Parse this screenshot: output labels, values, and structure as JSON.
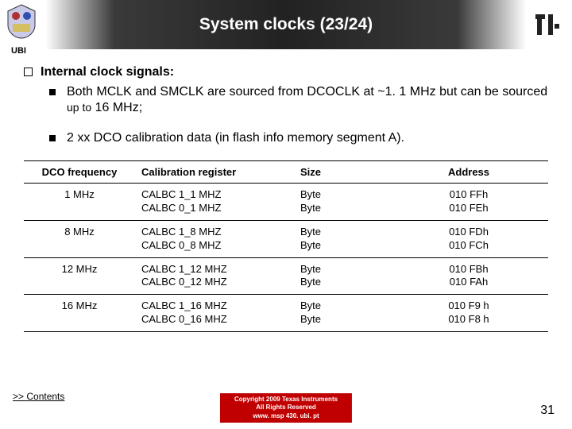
{
  "header": {
    "title": "System clocks (23/24)",
    "ubi_label": "UBI"
  },
  "content": {
    "main_heading": "Internal clock signals:",
    "sub1_a": "Both MCLK and SMCLK are sourced from DCOCLK at ~1. 1 MHz but can be sourced ",
    "sub1_b": "up to",
    "sub1_c": " 16 MHz;",
    "sub2": "2 xx DCO calibration data (in flash info memory segment A)."
  },
  "table": {
    "columns": [
      "DCO frequency",
      "Calibration register",
      "Size",
      "Address"
    ],
    "rows": [
      {
        "freq": "1 MHz",
        "reg1": "CALBC 1_1 MHZ",
        "reg2": "CALBC 0_1 MHZ",
        "size1": "Byte",
        "size2": "Byte",
        "addr1": "010 FFh",
        "addr2": "010 FEh"
      },
      {
        "freq": "8 MHz",
        "reg1": "CALBC 1_8 MHZ",
        "reg2": "CALBC 0_8 MHZ",
        "size1": "Byte",
        "size2": "Byte",
        "addr1": "010 FDh",
        "addr2": "010 FCh"
      },
      {
        "freq": "12 MHz",
        "reg1": "CALBC 1_12 MHZ",
        "reg2": "CALBC 0_12 MHZ",
        "size1": "Byte",
        "size2": "Byte",
        "addr1": "010 FBh",
        "addr2": "010 FAh"
      },
      {
        "freq": "16 MHz",
        "reg1": "CALBC 1_16 MHZ",
        "reg2": "CALBC 0_16 MHZ",
        "size1": "Byte",
        "size2": "Byte",
        "addr1": "010 F9 h",
        "addr2": "010 F8 h"
      }
    ]
  },
  "footer": {
    "contents_prefix": ">> ",
    "contents_text": "Contents",
    "copyright_line1": "Copyright  2009 Texas Instruments",
    "copyright_line2": "All Rights Reserved",
    "url": "www. msp 430. ubi. pt",
    "page_number": "31"
  }
}
